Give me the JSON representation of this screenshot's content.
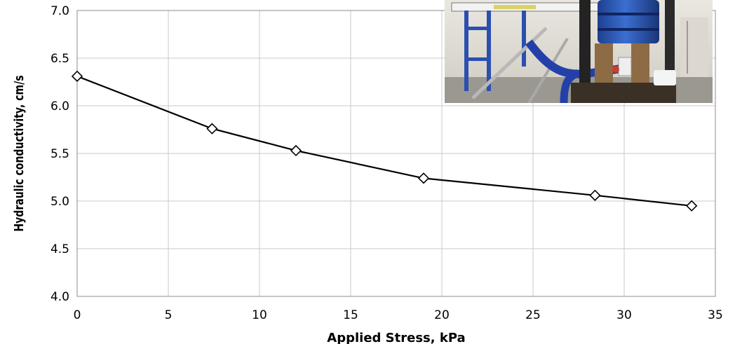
{
  "chart_data": {
    "type": "line",
    "xlabel": "Applied Stress, kPa",
    "ylabel": "Hydraulic conductivity, cm/s",
    "xlim": [
      0,
      35
    ],
    "ylim": [
      4.0,
      7.0
    ],
    "x_ticks": [
      "0",
      "5",
      "10",
      "15",
      "20",
      "25",
      "30",
      "35"
    ],
    "y_ticks": [
      "4.0",
      "4.5",
      "5.0",
      "5.5",
      "6.0",
      "6.5",
      "7.0"
    ],
    "grid": true,
    "marker": "diamond",
    "line_color": "#000000",
    "series": [
      {
        "x": [
          0,
          7.4,
          12.0,
          19.0,
          28.4,
          33.7
        ],
        "y": [
          6.31,
          5.76,
          5.53,
          5.24,
          5.06,
          4.95
        ]
      }
    ]
  },
  "inset_photo": {
    "description_icon": "lab-permeameter-photo"
  }
}
